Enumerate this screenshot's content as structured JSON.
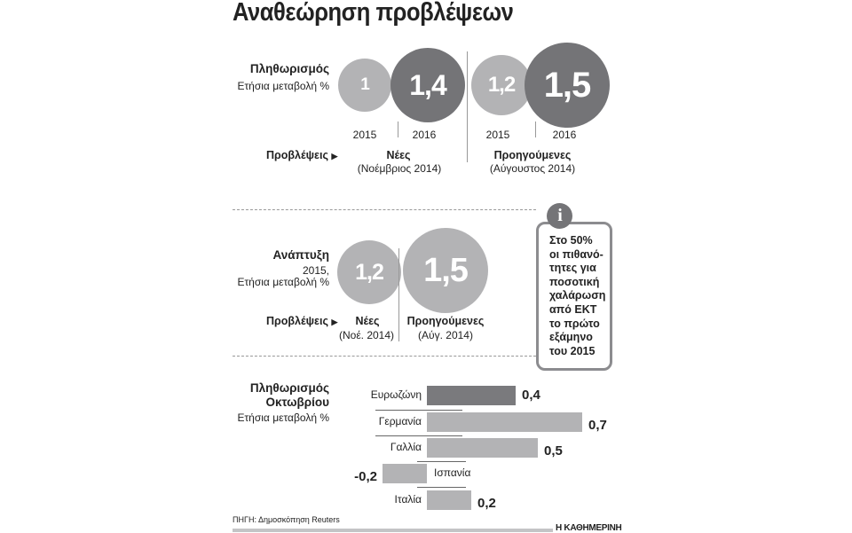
{
  "title": "Αναθεώρηση προβλέψεων",
  "inflation": {
    "heading": "Πληθωρισμός",
    "subheading": "Ετήσια μεταβολή %",
    "new": {
      "v2015": "1",
      "v2016": "1,4",
      "label": "Νέες",
      "date": "(Νοέμβριος 2014)"
    },
    "previous": {
      "v2015": "1,2",
      "v2016": "1,5",
      "label": "Προηγούμενες",
      "date": "(Αύγουστος 2014)"
    },
    "years": [
      "2015",
      "2016"
    ],
    "forecasts_label": "Προβλέψεις"
  },
  "growth": {
    "heading": "Ανάπτυξη",
    "sub1": "2015,",
    "sub2": "Ετήσια μεταβολή %",
    "new": {
      "value": "1,2",
      "label": "Νέες",
      "date": "(Νοέ. 2014)"
    },
    "previous": {
      "value": "1,5",
      "label": "Προηγούμενες",
      "date": "(Αύγ. 2014)"
    },
    "forecasts_label": "Προβλέψεις"
  },
  "info": {
    "icon": "info-icon",
    "lines": [
      "Στο 50%",
      "οι πιθανό-",
      "τητες για",
      "ποσοτική",
      "χαλάρωση",
      "από ΕΚΤ",
      "το πρώτο",
      "εξάμηνο",
      "του 2015"
    ]
  },
  "chart_data": {
    "type": "bar",
    "orientation": "horizontal",
    "title": "Πληθωρισμός Οκτωβρίου",
    "ylabel": "Ετήσια μεταβολή %",
    "categories": [
      "Ευρωζώνη",
      "Γερμανία",
      "Γαλλία",
      "Ισπανία",
      "Ιταλία"
    ],
    "values": [
      0.4,
      0.7,
      0.5,
      -0.2,
      0.2
    ],
    "labels": [
      "0,4",
      "0,7",
      "0,5",
      "-0,2",
      "0,2"
    ],
    "colors": [
      "#7a7a7d",
      "#b3b3b5",
      "#b3b3b5",
      "#b3b3b5",
      "#b3b3b5"
    ],
    "title1": "Πληθωρισμός",
    "title2": "Οκτωβρίου"
  },
  "footer": {
    "source": "ΠΗΓΗ: Δημοσκόπηση Reuters",
    "brand": "Η ΚΑΘΗΜΕΡΙΝΗ"
  }
}
